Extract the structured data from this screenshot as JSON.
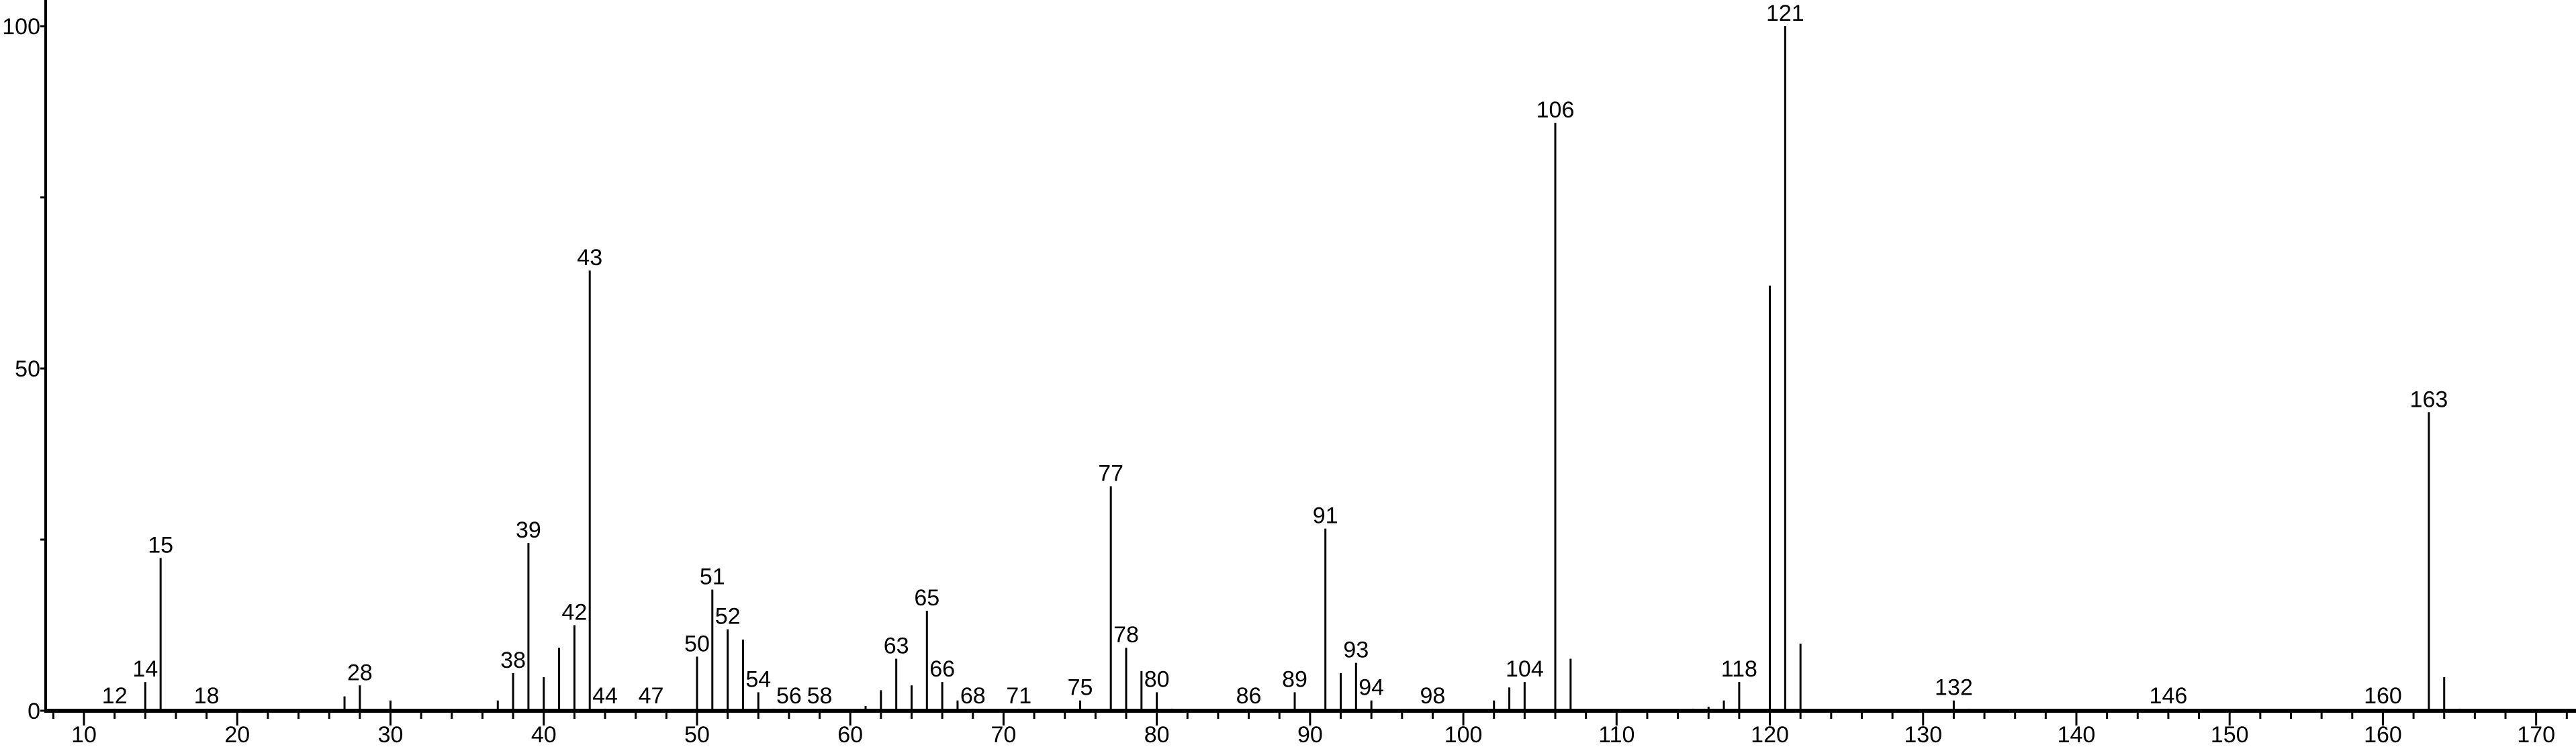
{
  "chart_data": {
    "type": "bar",
    "title": "",
    "xlabel": "",
    "ylabel": "",
    "xlim": [
      7.5,
      172.6
    ],
    "ylim": [
      0,
      100
    ],
    "grid": false,
    "x_ticks": [
      10,
      20,
      30,
      40,
      50,
      60,
      70,
      80,
      90,
      100,
      110,
      120,
      130,
      140,
      150,
      160,
      170
    ],
    "y_ticks": [
      0,
      50,
      100
    ],
    "line_color": "#000000",
    "peaks": [
      {
        "x": 12,
        "y": 0.3,
        "label": "12"
      },
      {
        "x": 14,
        "y": 4.2,
        "label": "14"
      },
      {
        "x": 15,
        "y": 22.3,
        "label": "15"
      },
      {
        "x": 18,
        "y": 0.3,
        "label": "18"
      },
      {
        "x": 27,
        "y": 2.1
      },
      {
        "x": 28,
        "y": 3.7,
        "label": "28"
      },
      {
        "x": 30,
        "y": 1.5
      },
      {
        "x": 37,
        "y": 1.5
      },
      {
        "x": 38,
        "y": 5.5,
        "label": "38"
      },
      {
        "x": 39,
        "y": 24.5,
        "label": "39"
      },
      {
        "x": 40,
        "y": 4.9
      },
      {
        "x": 41,
        "y": 9.2
      },
      {
        "x": 42,
        "y": 12.5,
        "label": "42"
      },
      {
        "x": 43,
        "y": 64.3,
        "label": "43"
      },
      {
        "x": 44,
        "y": 0.3,
        "label": "44"
      },
      {
        "x": 47,
        "y": 0.3,
        "label": "47"
      },
      {
        "x": 50,
        "y": 7.9,
        "label": "50"
      },
      {
        "x": 51,
        "y": 17.7,
        "label": "51"
      },
      {
        "x": 52,
        "y": 11.9,
        "label": "52"
      },
      {
        "x": 53,
        "y": 10.4
      },
      {
        "x": 54,
        "y": 2.7,
        "label": "54"
      },
      {
        "x": 55,
        "y": 0.3
      },
      {
        "x": 56,
        "y": 0.3,
        "label": "56"
      },
      {
        "x": 58,
        "y": 0.3,
        "label": "58"
      },
      {
        "x": 61,
        "y": 0.7
      },
      {
        "x": 62,
        "y": 3.0
      },
      {
        "x": 63,
        "y": 7.6,
        "label": "63"
      },
      {
        "x": 64,
        "y": 3.7
      },
      {
        "x": 65,
        "y": 14.6,
        "label": "65"
      },
      {
        "x": 66,
        "y": 4.2,
        "label": "66"
      },
      {
        "x": 67,
        "y": 1.5
      },
      {
        "x": 68,
        "y": 0.3,
        "label": "68"
      },
      {
        "x": 71,
        "y": 0.3,
        "label": "71"
      },
      {
        "x": 75,
        "y": 1.5,
        "label": "75"
      },
      {
        "x": 77,
        "y": 32.8,
        "label": "77"
      },
      {
        "x": 78,
        "y": 9.2,
        "label": "78"
      },
      {
        "x": 79,
        "y": 5.8
      },
      {
        "x": 80,
        "y": 2.7,
        "label": "80"
      },
      {
        "x": 81,
        "y": 0.3
      },
      {
        "x": 86,
        "y": 0.3,
        "label": "86"
      },
      {
        "x": 89,
        "y": 2.7,
        "label": "89"
      },
      {
        "x": 91,
        "y": 26.6,
        "label": "91"
      },
      {
        "x": 92,
        "y": 5.5
      },
      {
        "x": 93,
        "y": 7.0,
        "label": "93"
      },
      {
        "x": 94,
        "y": 1.5,
        "label": "94"
      },
      {
        "x": 98,
        "y": 0.3,
        "label": "98"
      },
      {
        "x": 102,
        "y": 1.5
      },
      {
        "x": 103,
        "y": 3.4
      },
      {
        "x": 104,
        "y": 4.2,
        "label": "104"
      },
      {
        "x": 106,
        "y": 85.9,
        "label": "106"
      },
      {
        "x": 107,
        "y": 7.6
      },
      {
        "x": 115,
        "y": 0.3
      },
      {
        "x": 116,
        "y": 0.6
      },
      {
        "x": 117,
        "y": 1.5
      },
      {
        "x": 118,
        "y": 4.2,
        "label": "118"
      },
      {
        "x": 120,
        "y": 62.1
      },
      {
        "x": 121,
        "y": 100,
        "label": "121"
      },
      {
        "x": 122,
        "y": 9.8
      },
      {
        "x": 132,
        "y": 1.5,
        "label": "132"
      },
      {
        "x": 133,
        "y": 0.3
      },
      {
        "x": 146,
        "y": 0.3,
        "label": "146"
      },
      {
        "x": 147,
        "y": 0.3
      },
      {
        "x": 160,
        "y": 0.3,
        "label": "160"
      },
      {
        "x": 161,
        "y": 0.3
      },
      {
        "x": 163,
        "y": 43.6,
        "label": "163"
      },
      {
        "x": 164,
        "y": 4.9
      },
      {
        "x": 165,
        "y": 0.3
      }
    ]
  }
}
